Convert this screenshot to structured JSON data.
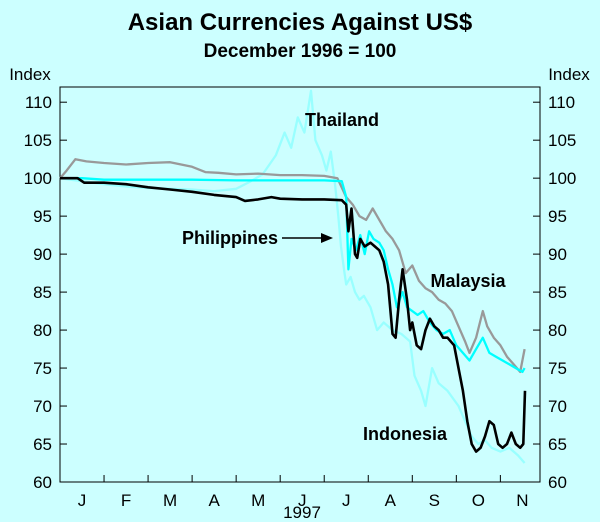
{
  "colors": {
    "background": "#ccffff",
    "thailand": "#99ffff",
    "malaysia": "#999999",
    "philippines": "#00ffff",
    "indonesia": "#000000"
  },
  "chart_data": {
    "type": "line",
    "title": "Asian Currencies Against US$",
    "subtitle": "December 1996 = 100",
    "ylabel_left": "Index",
    "ylabel_right": "Index",
    "ylim": [
      60,
      112
    ],
    "yticks": [
      60,
      65,
      70,
      75,
      80,
      85,
      90,
      95,
      100,
      105,
      110
    ],
    "xlim": [
      0,
      10.9
    ],
    "xticks": [
      {
        "label": "J",
        "month": 0.5
      },
      {
        "label": "F",
        "month": 1.5
      },
      {
        "label": "M",
        "month": 2.5
      },
      {
        "label": "A",
        "month": 3.5
      },
      {
        "label": "M",
        "month": 4.5
      },
      {
        "label": "J",
        "month": 5.5
      },
      {
        "label": "J",
        "month": 6.5
      },
      {
        "label": "A",
        "month": 7.5
      },
      {
        "label": "S",
        "month": 8.5
      },
      {
        "label": "O",
        "month": 9.5
      },
      {
        "label": "N",
        "month": 10.5
      }
    ],
    "year_label": "1997",
    "grid": false,
    "series": [
      {
        "name": "Thailand",
        "color_key": "thailand",
        "points": [
          [
            0,
            100
          ],
          [
            0.5,
            99.6
          ],
          [
            1,
            99.2
          ],
          [
            1.5,
            98.9
          ],
          [
            2,
            98.7
          ],
          [
            2.5,
            98.6
          ],
          [
            3,
            98.5
          ],
          [
            3.5,
            98.3
          ],
          [
            4,
            98.6
          ],
          [
            4.3,
            99.5
          ],
          [
            4.6,
            100.5
          ],
          [
            4.9,
            103
          ],
          [
            5.1,
            106
          ],
          [
            5.25,
            104
          ],
          [
            5.4,
            108
          ],
          [
            5.55,
            106
          ],
          [
            5.7,
            111.5
          ],
          [
            5.8,
            105
          ],
          [
            5.95,
            103
          ],
          [
            6.05,
            101
          ],
          [
            6.15,
            103.5
          ],
          [
            6.25,
            99
          ],
          [
            6.32,
            95
          ],
          [
            6.38,
            91
          ],
          [
            6.45,
            88
          ],
          [
            6.5,
            86
          ],
          [
            6.6,
            87
          ],
          [
            6.7,
            85
          ],
          [
            6.8,
            84
          ],
          [
            6.9,
            84.5
          ],
          [
            7.05,
            83
          ],
          [
            7.2,
            80
          ],
          [
            7.35,
            81
          ],
          [
            7.55,
            80
          ],
          [
            7.75,
            79.5
          ],
          [
            7.95,
            78.5
          ],
          [
            8.05,
            74
          ],
          [
            8.2,
            72
          ],
          [
            8.3,
            70
          ],
          [
            8.45,
            75
          ],
          [
            8.6,
            73
          ],
          [
            8.8,
            72
          ],
          [
            9.05,
            70
          ],
          [
            9.2,
            68
          ],
          [
            9.35,
            66
          ],
          [
            9.5,
            65
          ],
          [
            9.65,
            65.5
          ],
          [
            9.8,
            64.5
          ],
          [
            10.0,
            64
          ],
          [
            10.2,
            64.5
          ],
          [
            10.4,
            63.5
          ],
          [
            10.55,
            62.5
          ]
        ]
      },
      {
        "name": "Malaysia",
        "color_key": "malaysia",
        "points": [
          [
            0,
            100
          ],
          [
            0.15,
            101
          ],
          [
            0.35,
            102.5
          ],
          [
            0.6,
            102.2
          ],
          [
            1,
            102
          ],
          [
            1.5,
            101.8
          ],
          [
            2,
            102
          ],
          [
            2.5,
            102.1
          ],
          [
            3,
            101.5
          ],
          [
            3.3,
            100.8
          ],
          [
            3.6,
            100.7
          ],
          [
            4,
            100.5
          ],
          [
            4.5,
            100.6
          ],
          [
            5,
            100.4
          ],
          [
            5.5,
            100.4
          ],
          [
            6,
            100.3
          ],
          [
            6.3,
            100
          ],
          [
            6.5,
            97.5
          ],
          [
            6.65,
            96.5
          ],
          [
            6.8,
            95
          ],
          [
            6.95,
            94.5
          ],
          [
            7.1,
            96
          ],
          [
            7.25,
            94.5
          ],
          [
            7.4,
            93
          ],
          [
            7.55,
            92
          ],
          [
            7.7,
            90.5
          ],
          [
            7.85,
            87.5
          ],
          [
            8.0,
            88.5
          ],
          [
            8.15,
            86.5
          ],
          [
            8.3,
            85.5
          ],
          [
            8.45,
            85
          ],
          [
            8.6,
            84
          ],
          [
            8.75,
            83.5
          ],
          [
            8.9,
            82.5
          ],
          [
            9.05,
            80.5
          ],
          [
            9.2,
            78.5
          ],
          [
            9.3,
            77
          ],
          [
            9.45,
            79
          ],
          [
            9.6,
            82.5
          ],
          [
            9.7,
            80.5
          ],
          [
            9.85,
            79
          ],
          [
            10.0,
            78
          ],
          [
            10.15,
            76.5
          ],
          [
            10.3,
            75.5
          ],
          [
            10.45,
            74.5
          ],
          [
            10.55,
            77.5
          ]
        ]
      },
      {
        "name": "Philippines",
        "color_key": "philippines",
        "points": [
          [
            0,
            100
          ],
          [
            0.5,
            100
          ],
          [
            1,
            99.8
          ],
          [
            2,
            99.8
          ],
          [
            3,
            99.8
          ],
          [
            4,
            99.7
          ],
          [
            5,
            99.7
          ],
          [
            6,
            99.7
          ],
          [
            6.4,
            99.6
          ],
          [
            6.5,
            97.5
          ],
          [
            6.55,
            88
          ],
          [
            6.62,
            92
          ],
          [
            6.72,
            90.5
          ],
          [
            6.82,
            92.5
          ],
          [
            6.92,
            90
          ],
          [
            7.02,
            93
          ],
          [
            7.12,
            92
          ],
          [
            7.25,
            91.5
          ],
          [
            7.35,
            90.5
          ],
          [
            7.45,
            88
          ],
          [
            7.55,
            86
          ],
          [
            7.65,
            83
          ],
          [
            7.78,
            85
          ],
          [
            7.88,
            83
          ],
          [
            8.0,
            82.5
          ],
          [
            8.12,
            82
          ],
          [
            8.25,
            82.5
          ],
          [
            8.4,
            81
          ],
          [
            8.55,
            80
          ],
          [
            8.7,
            79.5
          ],
          [
            8.85,
            80
          ],
          [
            9.0,
            78
          ],
          [
            9.15,
            77
          ],
          [
            9.3,
            76
          ],
          [
            9.45,
            77.5
          ],
          [
            9.6,
            79
          ],
          [
            9.75,
            77
          ],
          [
            9.9,
            76.5
          ],
          [
            10.05,
            76
          ],
          [
            10.2,
            75.5
          ],
          [
            10.35,
            75
          ],
          [
            10.5,
            74.5
          ],
          [
            10.55,
            75
          ]
        ]
      },
      {
        "name": "Indonesia",
        "color_key": "indonesia",
        "points": [
          [
            0,
            100
          ],
          [
            0.4,
            100
          ],
          [
            0.55,
            99.4
          ],
          [
            1,
            99.4
          ],
          [
            1.5,
            99.2
          ],
          [
            2,
            98.8
          ],
          [
            2.5,
            98.5
          ],
          [
            3,
            98.2
          ],
          [
            3.5,
            97.8
          ],
          [
            4,
            97.5
          ],
          [
            4.2,
            97
          ],
          [
            4.5,
            97.2
          ],
          [
            4.8,
            97.5
          ],
          [
            5,
            97.3
          ],
          [
            5.5,
            97.2
          ],
          [
            6,
            97.2
          ],
          [
            6.4,
            97.1
          ],
          [
            6.5,
            96.5
          ],
          [
            6.55,
            93
          ],
          [
            6.62,
            96
          ],
          [
            6.7,
            90
          ],
          [
            6.75,
            89.5
          ],
          [
            6.82,
            92
          ],
          [
            6.92,
            91
          ],
          [
            7.05,
            91.5
          ],
          [
            7.15,
            91
          ],
          [
            7.25,
            90.5
          ],
          [
            7.35,
            89
          ],
          [
            7.45,
            86
          ],
          [
            7.55,
            79.5
          ],
          [
            7.62,
            79
          ],
          [
            7.7,
            84
          ],
          [
            7.78,
            88
          ],
          [
            7.88,
            84
          ],
          [
            7.95,
            80
          ],
          [
            8.0,
            81
          ],
          [
            8.1,
            78
          ],
          [
            8.2,
            77.5
          ],
          [
            8.3,
            80
          ],
          [
            8.4,
            81.5
          ],
          [
            8.5,
            80.5
          ],
          [
            8.6,
            80
          ],
          [
            8.7,
            79
          ],
          [
            8.8,
            79
          ],
          [
            8.95,
            78
          ],
          [
            9.05,
            75
          ],
          [
            9.15,
            72
          ],
          [
            9.25,
            68
          ],
          [
            9.35,
            65
          ],
          [
            9.45,
            64
          ],
          [
            9.55,
            64.5
          ],
          [
            9.65,
            66
          ],
          [
            9.75,
            68
          ],
          [
            9.85,
            67.5
          ],
          [
            9.95,
            65
          ],
          [
            10.05,
            64.5
          ],
          [
            10.15,
            65
          ],
          [
            10.25,
            66.5
          ],
          [
            10.35,
            65
          ],
          [
            10.45,
            64.5
          ],
          [
            10.52,
            65
          ],
          [
            10.56,
            72
          ]
        ]
      }
    ],
    "annotations": [
      {
        "label": "Thailand",
        "series": "Thailand"
      },
      {
        "label": "Philippines",
        "series": "Philippines",
        "arrow": true
      },
      {
        "label": "Malaysia",
        "series": "Malaysia"
      },
      {
        "label": "Indonesia",
        "series": "Indonesia"
      }
    ]
  }
}
